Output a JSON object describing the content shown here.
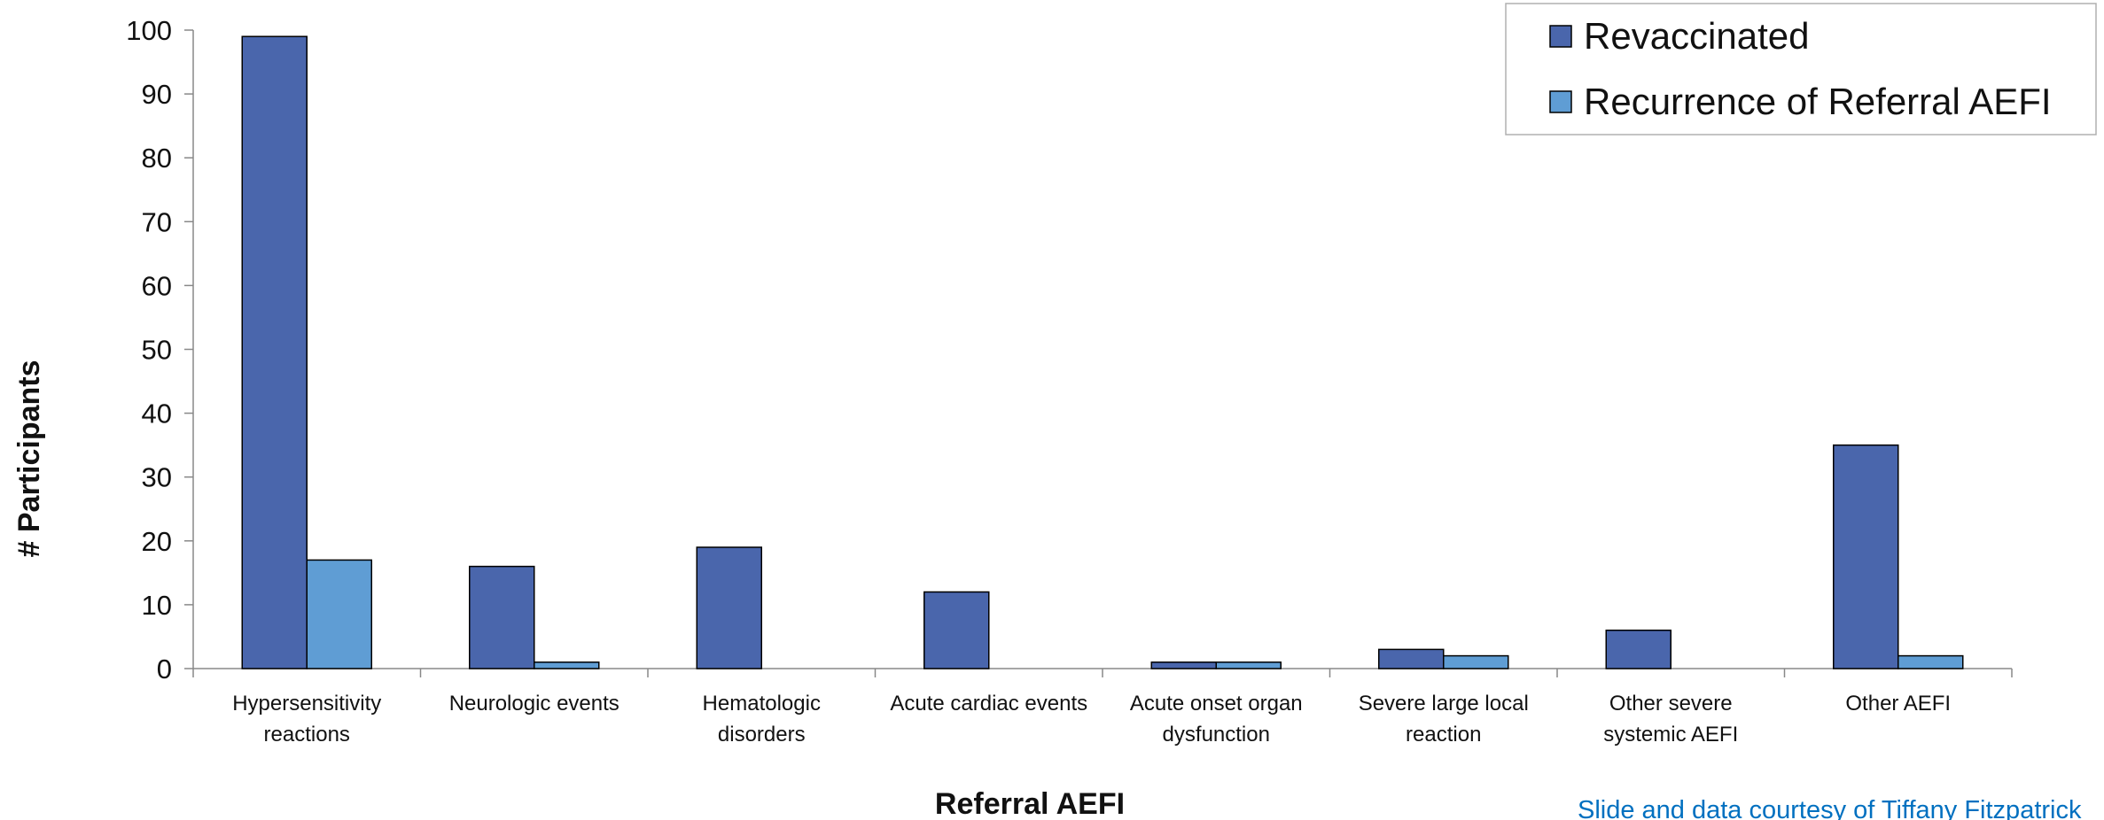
{
  "chart_data": {
    "type": "bar",
    "categories": [
      [
        "Hypersensitivity",
        "reactions"
      ],
      [
        "Neurologic events"
      ],
      [
        "Hematologic",
        "disorders"
      ],
      [
        "Acute cardiac events"
      ],
      [
        "Acute onset organ",
        "dysfunction"
      ],
      [
        "Severe large local",
        "reaction"
      ],
      [
        "Other severe",
        "systemic AEFI"
      ],
      [
        "Other AEFI"
      ]
    ],
    "series": [
      {
        "name": "Revaccinated",
        "color": "#4a66ac",
        "values": [
          99,
          16,
          19,
          12,
          1,
          3,
          6,
          35
        ]
      },
      {
        "name": "Recurrence of Referral AEFI",
        "color": "#5f9dd4",
        "values": [
          17,
          1,
          0,
          0,
          1,
          2,
          0,
          2
        ]
      }
    ],
    "xlabel": "Referral AEFI",
    "ylabel": "# Participants",
    "ylim": [
      0,
      100
    ],
    "yticks": [
      0,
      10,
      20,
      30,
      40,
      50,
      60,
      70,
      80,
      90,
      100
    ],
    "legend_position": "top-right",
    "grid": false
  },
  "footer": {
    "credit": "Slide and data courtesy of Tiffany Fitzpatrick"
  }
}
